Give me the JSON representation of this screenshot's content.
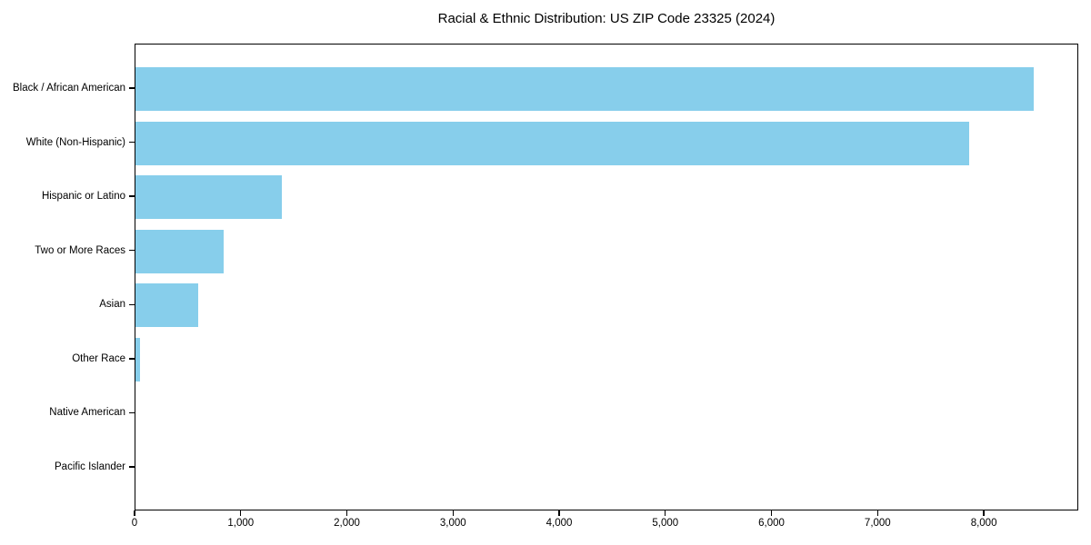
{
  "chart_data": {
    "type": "bar",
    "orientation": "horizontal",
    "title": "Racial & Ethnic Distribution: US ZIP Code 23325 (2024)",
    "categories": [
      "Black / African American",
      "White (Non-Hispanic)",
      "Hispanic or Latino",
      "Two or More Races",
      "Asian",
      "Other Race",
      "Native American",
      "Pacific Islander"
    ],
    "values": [
      8460,
      7850,
      1380,
      830,
      590,
      40,
      0,
      0
    ],
    "xlabel": "",
    "ylabel": "",
    "xlim": [
      0,
      8890
    ],
    "xticks": [
      0,
      1000,
      2000,
      3000,
      4000,
      5000,
      6000,
      7000,
      8000
    ],
    "xtick_labels": [
      "0",
      "1,000",
      "2,000",
      "3,000",
      "4,000",
      "5,000",
      "6,000",
      "7,000",
      "8,000"
    ],
    "bar_color": "#87CEEB",
    "axis_color": "#000000",
    "background_color": "#ffffff",
    "grid": false,
    "legend": "none"
  }
}
